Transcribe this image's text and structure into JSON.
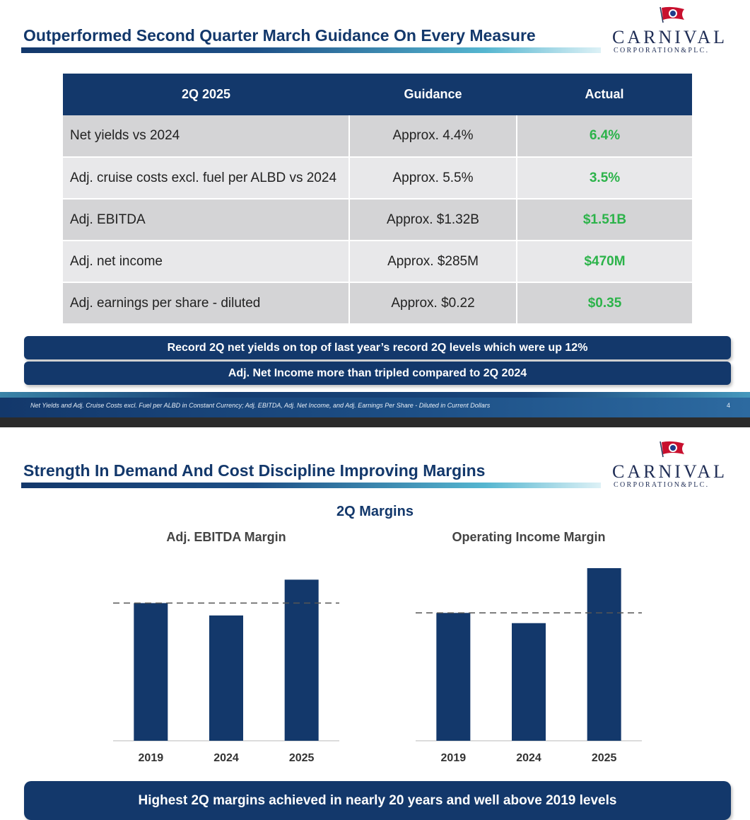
{
  "slide1": {
    "title": "Outperformed Second Quarter March Guidance On Every Measure",
    "logo": {
      "brand": "CARNIVAL",
      "sub": "CORPORATION&PLC."
    },
    "table": {
      "headers": [
        "2Q 2025",
        "Guidance",
        "Actual"
      ],
      "rows": [
        {
          "measure": "Net yields vs 2024",
          "guidance": "Approx. 4.4%",
          "actual": "6.4%"
        },
        {
          "measure": "Adj. cruise costs excl. fuel per ALBD vs 2024",
          "guidance": "Approx. 5.5%",
          "actual": "3.5%"
        },
        {
          "measure": "Adj. EBITDA",
          "guidance": "Approx. $1.32B",
          "actual": "$1.51B"
        },
        {
          "measure": "Adj. net income",
          "guidance": "Approx. $285M",
          "actual": "$470M"
        },
        {
          "measure": "Adj. earnings per share - diluted",
          "guidance": "Approx. $0.22",
          "actual": "$0.35"
        }
      ]
    },
    "banners": [
      "Record 2Q net yields on top of last year’s record 2Q levels which were up 12%",
      "Adj. Net Income more than tripled compared to 2Q 2024"
    ],
    "footnote": "Net Yields and Adj. Cruise Costs excl. Fuel per ALBD in Constant Currency; Adj. EBITDA, Adj. Net Income, and Adj. Earnings Per Share - Diluted in Current Dollars",
    "page_number": "4"
  },
  "slide2": {
    "title": "Strength In Demand And Cost Discipline Improving Margins",
    "logo": {
      "brand": "CARNIVAL",
      "sub": "CORPORATION&PLC."
    },
    "section_title": "2Q Margins",
    "banner": "Highest 2Q margins achieved in nearly 20 years and well above 2019 levels"
  },
  "colors": {
    "navy": "#13386b",
    "green": "#2cb34a",
    "accent": "#55b6d0"
  },
  "chart_data": [
    {
      "type": "bar",
      "title": "Adj. EBITDA Margin",
      "categories": [
        "2019",
        "2024",
        "2025"
      ],
      "values": [
        100,
        91,
        117
      ],
      "reference_line": 100,
      "reference_style": "dashed",
      "ylim": [
        0,
        130
      ],
      "grid": false,
      "color": "#13386b"
    },
    {
      "type": "bar",
      "title": "Operating Income Margin",
      "categories": [
        "2019",
        "2024",
        "2025"
      ],
      "values": [
        100,
        92,
        135
      ],
      "reference_line": 100,
      "reference_style": "dashed",
      "ylim": [
        0,
        140
      ],
      "grid": false,
      "color": "#13386b"
    }
  ]
}
